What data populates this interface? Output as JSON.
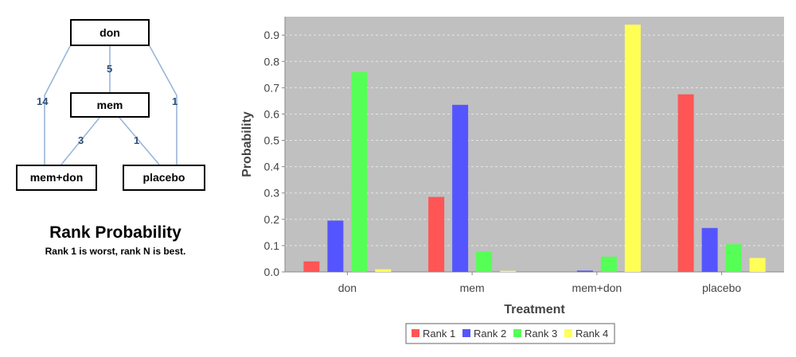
{
  "network": {
    "nodes": [
      {
        "id": "don",
        "label": "don"
      },
      {
        "id": "mem",
        "label": "mem"
      },
      {
        "id": "memdon",
        "label": "mem+don"
      },
      {
        "id": "placebo",
        "label": "placebo"
      }
    ],
    "edges": [
      {
        "from": "don",
        "to": "mem",
        "label": "5"
      },
      {
        "from": "don",
        "to": "memdon",
        "label": "14"
      },
      {
        "from": "don",
        "to": "placebo",
        "label": "1"
      },
      {
        "from": "mem",
        "to": "memdon",
        "label": "3"
      },
      {
        "from": "mem",
        "to": "placebo",
        "label": "1"
      }
    ],
    "edge_color": "#9ab6d8",
    "label_color": "#2f4f75"
  },
  "rank_title": "Rank Probability",
  "rank_subtitle": "Rank 1 is worst, rank N is best.",
  "chart_data": {
    "type": "bar",
    "categories": [
      "don",
      "mem",
      "mem+don",
      "placebo"
    ],
    "series": [
      {
        "name": "Rank 1",
        "color": "#ff5555",
        "values": [
          0.04,
          0.285,
          0.0,
          0.675
        ]
      },
      {
        "name": "Rank 2",
        "color": "#5555ff",
        "values": [
          0.195,
          0.635,
          0.005,
          0.167
        ]
      },
      {
        "name": "Rank 3",
        "color": "#55ff55",
        "values": [
          0.76,
          0.077,
          0.058,
          0.105
        ]
      },
      {
        "name": "Rank 4",
        "color": "#ffff55",
        "values": [
          0.01,
          0.004,
          0.94,
          0.053
        ]
      }
    ],
    "xlabel": "Treatment",
    "ylabel": "Probability",
    "ylim": [
      0,
      0.97
    ],
    "yticks": [
      "0.0",
      "0.1",
      "0.2",
      "0.3",
      "0.4",
      "0.5",
      "0.6",
      "0.7",
      "0.8",
      "0.9"
    ],
    "plot_background": "#c0c0c0",
    "grid": true,
    "legend_position": "bottom"
  }
}
